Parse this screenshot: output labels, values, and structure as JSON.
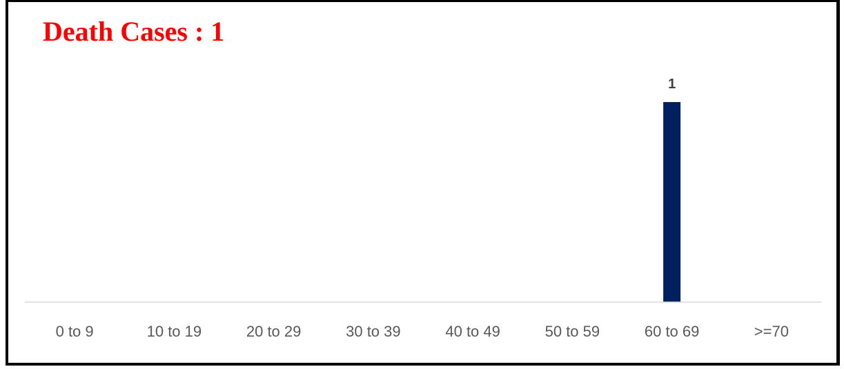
{
  "chart_data": {
    "type": "bar",
    "title": "Death Cases : 1",
    "categories": [
      "0 to 9",
      "10 to 19",
      "20 to 29",
      "30 to 39",
      "40 to 49",
      "50 to 59",
      "60 to 69",
      ">=70"
    ],
    "values": [
      0,
      0,
      0,
      0,
      0,
      0,
      1,
      0
    ],
    "data_labels": [
      "",
      "",
      "",
      "",
      "",
      "",
      "1",
      ""
    ],
    "xlabel": "",
    "ylabel": "",
    "ylim": [
      0,
      1
    ],
    "grid": false,
    "legend": "none",
    "colors": {
      "bar": "#002060",
      "title": "#ff0000",
      "axis": "#d9d9d9",
      "tick_text": "#595959",
      "data_label_text": "#404040"
    }
  }
}
